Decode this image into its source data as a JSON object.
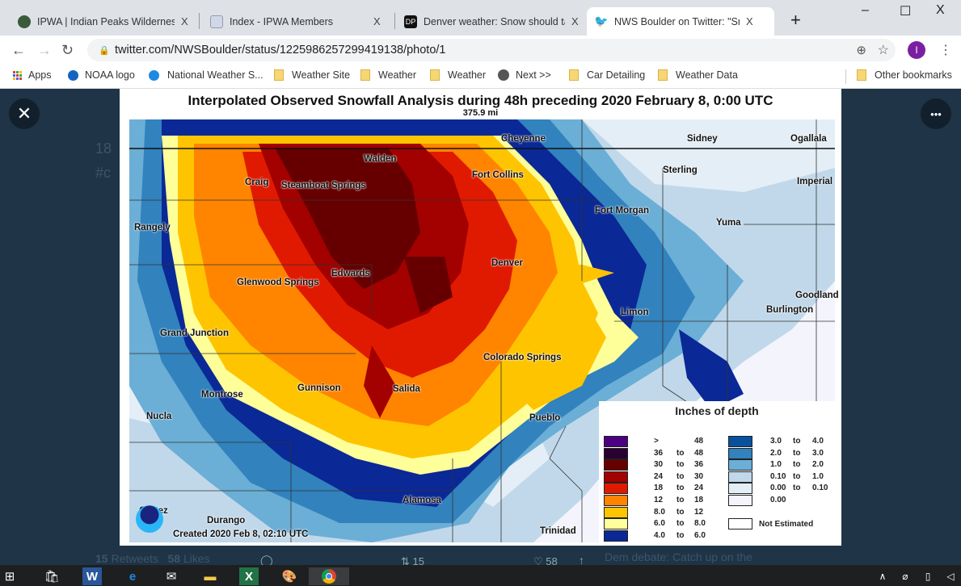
{
  "browser": {
    "tabs": [
      {
        "title": "IPWA | Indian Peaks Wilderness A",
        "icon": "ipwa-logo-icon",
        "close": "X"
      },
      {
        "title": "Index - IPWA Members",
        "icon": "document-icon",
        "close": "X"
      },
      {
        "title": "Denver weather: Snow should tap",
        "icon": "dp-icon",
        "favicon_text": "DP",
        "close": "X"
      },
      {
        "title": "NWS Boulder on Twitter: \"Snowfa",
        "icon": "twitter-icon",
        "close": "X",
        "active": true
      }
    ],
    "new_tab": "+",
    "window_controls": {
      "minimize": "–",
      "maximize": "☐",
      "close": "X"
    },
    "url": "twitter.com/NWSBoulder/status/1225986257299419138/photo/1",
    "profile_initial": "I",
    "profile_color": "#7b1fa2",
    "bookmarks": [
      {
        "label": "Apps",
        "icon": "apps-grid-icon"
      },
      {
        "label": "NOAA logo",
        "icon": "noaa-icon"
      },
      {
        "label": "National Weather S...",
        "icon": "nws-icon"
      },
      {
        "label": "Weather Site",
        "icon": "folder-icon"
      },
      {
        "label": "Weather",
        "icon": "folder-icon"
      },
      {
        "label": "Weather",
        "icon": "folder-icon"
      },
      {
        "label": "Next >>",
        "icon": "globe-icon"
      },
      {
        "label": "Car Detailing",
        "icon": "folder-icon"
      },
      {
        "label": "Weather Data",
        "icon": "folder-icon"
      }
    ],
    "other_bookmarks": "Other bookmarks"
  },
  "twitter": {
    "close_label": "✕",
    "more_label": "•••",
    "bg_text_1": "18",
    "bg_text_2": "#c",
    "retweets_count": "15",
    "retweets_label": "Retweets",
    "likes_count": "58",
    "likes_label": "Likes",
    "retweet_action_count": "15",
    "like_action_count": "58",
    "trend_text": "Dem debate: Catch up on the"
  },
  "map": {
    "title": "Interpolated Observed Snowfall Analysis during 48h preceding 2020 February 8, 0:00 UTC",
    "scale": "375.9 mi",
    "created": "Created 2020 Feb 8, 02:10 UTC",
    "cities": [
      "Cheyenne",
      "Sidney",
      "Ogallala",
      "Walden",
      "Fort Collins",
      "Sterling",
      "Imperial",
      "Craig",
      "Steamboat Springs",
      "Fort Morgan",
      "Yuma",
      "Rangely",
      "Denver",
      "Edwards",
      "Glenwood Springs",
      "Limon",
      "Burlington",
      "Goodland",
      "Grand Junction",
      "Colorado Springs",
      "Salida",
      "Gunnison",
      "Montrose",
      "Nucla",
      "Pueblo",
      "Alamosa",
      "Cortez",
      "Durango",
      "Trinidad"
    ],
    "legend": {
      "title": "Inches of depth",
      "left": [
        {
          "color": "#4b0082",
          "from": ">",
          "to_word": "",
          "to": "48"
        },
        {
          "color": "#2a0030",
          "from": "36",
          "to_word": "to",
          "to": "48"
        },
        {
          "color": "#660000",
          "from": "30",
          "to_word": "to",
          "to": "36"
        },
        {
          "color": "#a30000",
          "from": "24",
          "to_word": "to",
          "to": "30"
        },
        {
          "color": "#e01a00",
          "from": "18",
          "to_word": "to",
          "to": "24"
        },
        {
          "color": "#ff8400",
          "from": "12",
          "to_word": "to",
          "to": "18"
        },
        {
          "color": "#ffc400",
          "from": "8.0",
          "to_word": "to",
          "to": "12"
        },
        {
          "color": "#ffff99",
          "from": "6.0",
          "to_word": "to",
          "to": "8.0"
        },
        {
          "color": "#0a2896",
          "from": "4.0",
          "to_word": "to",
          "to": "6.0"
        }
      ],
      "right": [
        {
          "color": "#08519c",
          "from": "3.0",
          "to_word": "to",
          "to": "4.0"
        },
        {
          "color": "#3182bd",
          "from": "2.0",
          "to_word": "to",
          "to": "3.0"
        },
        {
          "color": "#6baed6",
          "from": "1.0",
          "to_word": "to",
          "to": "2.0"
        },
        {
          "color": "#c0d8ea",
          "from": "0.10",
          "to_word": "to",
          "to": "1.0"
        },
        {
          "color": "#e4eef6",
          "from": "0.00",
          "to_word": "to",
          "to": "0.10"
        },
        {
          "color": "#f4f4fc",
          "from": "0.00",
          "to_word": "",
          "to": ""
        }
      ],
      "not_estimated": "Not Estimated"
    }
  }
}
